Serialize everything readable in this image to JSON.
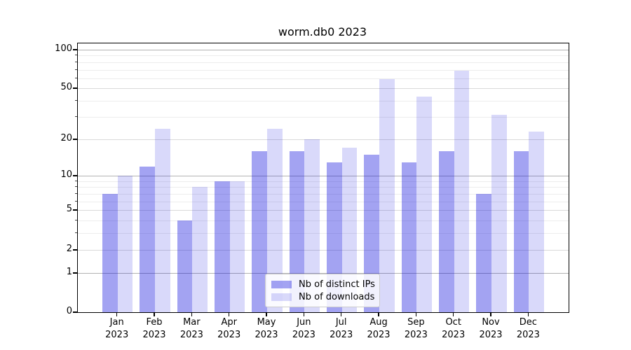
{
  "chart_data": {
    "type": "bar",
    "title": "worm.db0 2023",
    "categories": [
      "Jan",
      "Feb",
      "Mar",
      "Apr",
      "May",
      "Jun",
      "Jul",
      "Aug",
      "Sep",
      "Oct",
      "Nov",
      "Dec"
    ],
    "x_year": "2023",
    "series": [
      {
        "name": "Nb of distinct IPs",
        "color": "rgba(0,0,220,0.36)",
        "values": [
          7,
          12,
          4,
          9,
          16,
          16,
          13,
          15,
          13,
          16,
          7,
          16
        ]
      },
      {
        "name": "Nb of downloads",
        "color": "rgba(0,0,220,0.15)",
        "values": [
          10,
          24,
          8,
          9,
          24,
          20,
          17,
          59,
          43,
          69,
          31,
          23
        ]
      }
    ],
    "xlabel": "",
    "ylabel": "",
    "yscale": "log1p",
    "ylim": [
      0,
      100
    ],
    "yticks": [
      0,
      1,
      2,
      5,
      10,
      20,
      50,
      100
    ],
    "yticks_emphasized": [
      1,
      10,
      100
    ],
    "yticks_minor": [
      3,
      4,
      6,
      7,
      8,
      9,
      30,
      40,
      60,
      70,
      80,
      90
    ],
    "grid": "on",
    "legend_position": "lower center"
  }
}
